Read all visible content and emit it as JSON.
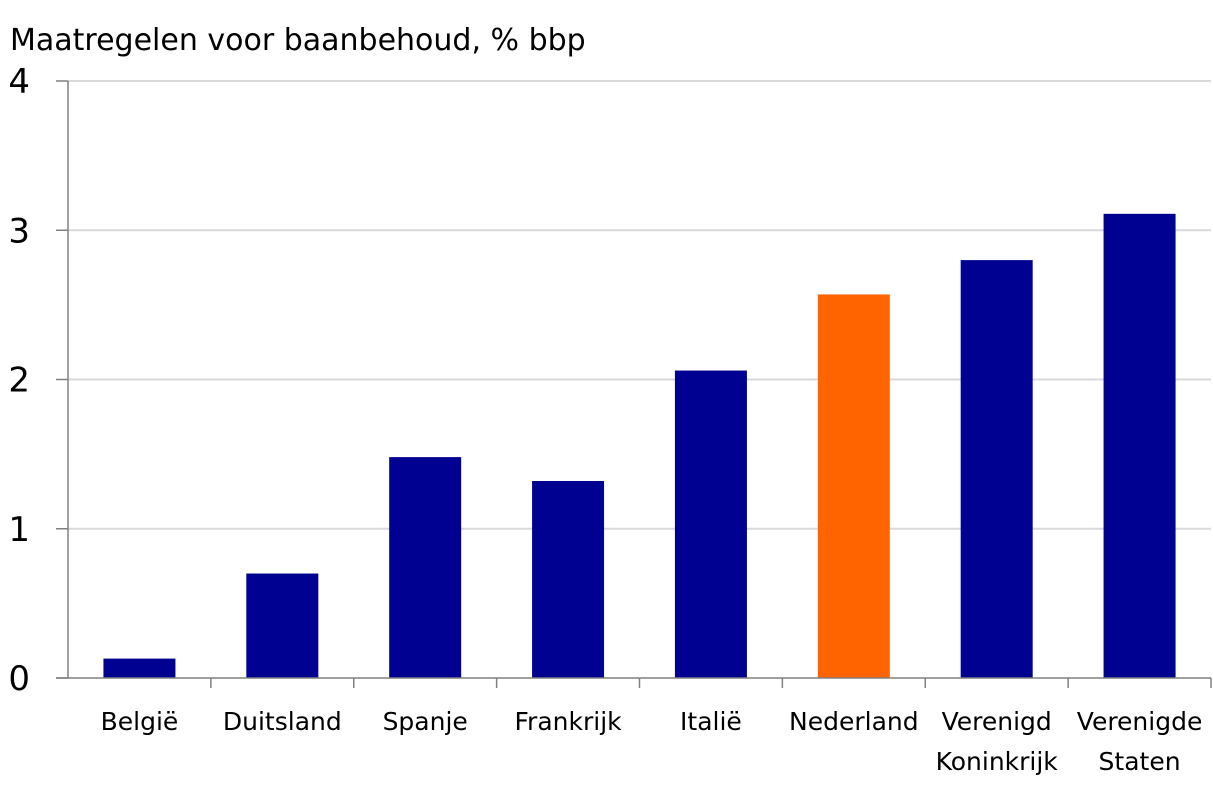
{
  "chart_data": {
    "type": "bar",
    "title": "Maatregelen voor baanbehoud, % bbp",
    "xlabel": "",
    "ylabel": "",
    "ylim": [
      0,
      4
    ],
    "yticks": [
      "0",
      "1",
      "2",
      "3",
      "4"
    ],
    "grid": true,
    "categories": [
      [
        "België"
      ],
      [
        "Duitsland"
      ],
      [
        "Spanje"
      ],
      [
        "Frankrijk"
      ],
      [
        "Italië"
      ],
      [
        "Nederland"
      ],
      [
        "Verenigd",
        "Koninkrijk"
      ],
      [
        "Verenigde",
        "Staten"
      ]
    ],
    "values": [
      0.13,
      0.7,
      1.48,
      1.32,
      2.06,
      2.57,
      2.8,
      3.11
    ],
    "colors": [
      "#000091",
      "#000091",
      "#000091",
      "#000091",
      "#000091",
      "#ff6400",
      "#000091",
      "#000091"
    ],
    "highlight": "Nederland"
  }
}
